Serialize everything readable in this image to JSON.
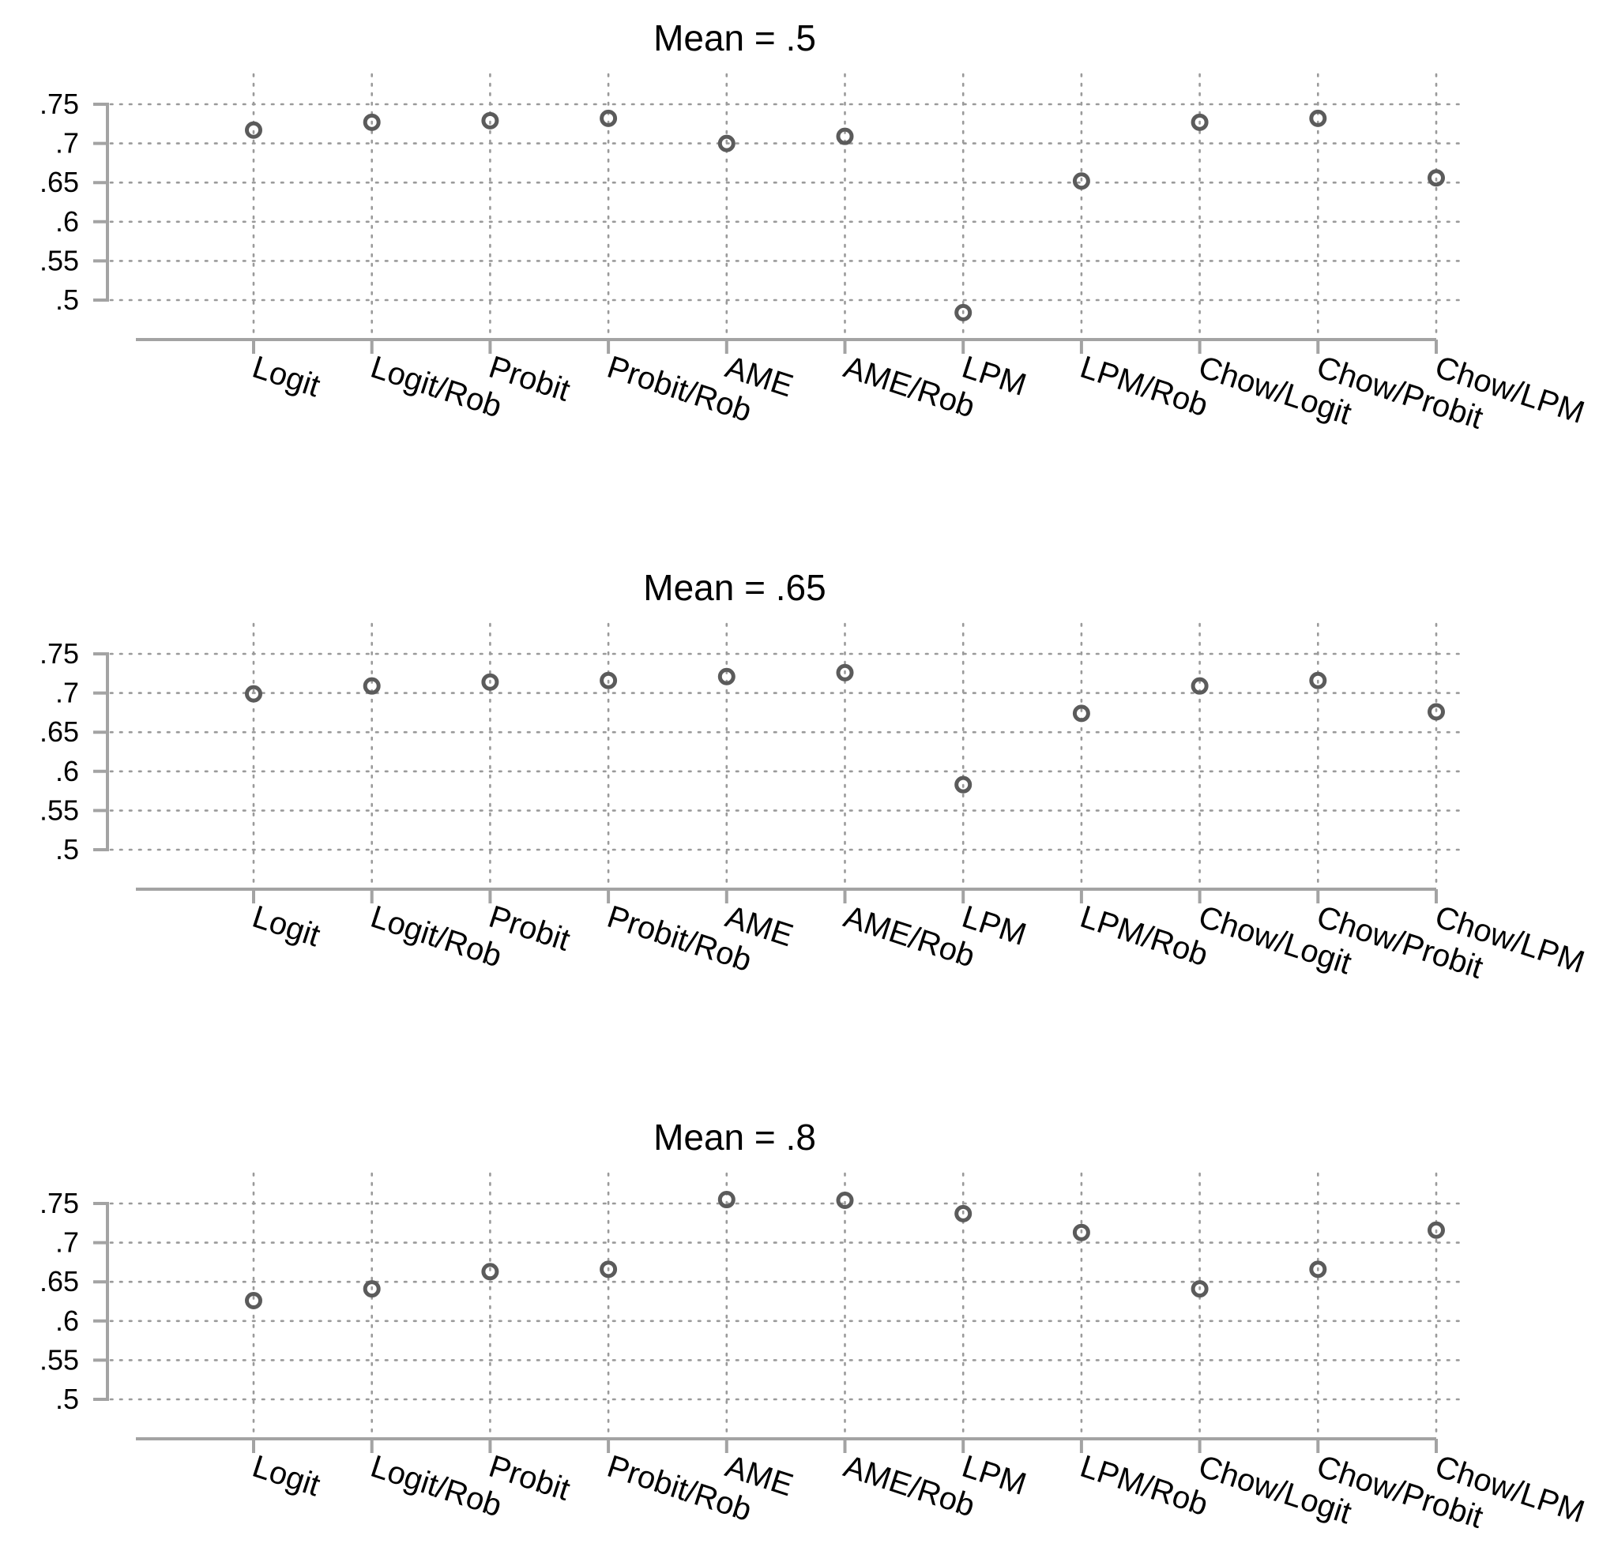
{
  "chart_data": [
    {
      "type": "scatter",
      "title": "Mean = .5",
      "categories": [
        "Logit",
        "Logit/Rob",
        "Probit",
        "Probit/Rob",
        "AME",
        "AME/Rob",
        "LPM",
        "LPM/Rob",
        "Chow/Logit",
        "Chow/Probit",
        "Chow/LPM"
      ],
      "values": [
        0.717,
        0.727,
        0.729,
        0.732,
        0.7,
        0.709,
        0.484,
        0.652,
        0.727,
        0.732,
        0.656
      ],
      "yticks": [
        ".5",
        ".55",
        ".6",
        ".65",
        ".7",
        ".75"
      ],
      "ylim": [
        0.5,
        0.75
      ],
      "grid": true,
      "marker": "hollow-circle",
      "colors": {
        "marker": "#5b5b5b",
        "axis": "#a3a3a3",
        "grid": "#9a9a9a"
      }
    },
    {
      "type": "scatter",
      "title": "Mean = .65",
      "categories": [
        "Logit",
        "Logit/Rob",
        "Probit",
        "Probit/Rob",
        "AME",
        "AME/Rob",
        "LPM",
        "LPM/Rob",
        "Chow/Logit",
        "Chow/Probit",
        "Chow/LPM"
      ],
      "values": [
        0.699,
        0.709,
        0.714,
        0.716,
        0.721,
        0.726,
        0.583,
        0.674,
        0.709,
        0.716,
        0.676
      ],
      "yticks": [
        ".5",
        ".55",
        ".6",
        ".65",
        ".7",
        ".75"
      ],
      "ylim": [
        0.5,
        0.75
      ],
      "grid": true,
      "marker": "hollow-circle",
      "colors": {
        "marker": "#5b5b5b",
        "axis": "#a3a3a3",
        "grid": "#9a9a9a"
      }
    },
    {
      "type": "scatter",
      "title": "Mean = .8",
      "categories": [
        "Logit",
        "Logit/Rob",
        "Probit",
        "Probit/Rob",
        "AME",
        "AME/Rob",
        "LPM",
        "LPM/Rob",
        "Chow/Logit",
        "Chow/Probit",
        "Chow/LPM"
      ],
      "values": [
        0.626,
        0.641,
        0.663,
        0.666,
        0.755,
        0.754,
        0.737,
        0.713,
        0.641,
        0.666,
        0.716
      ],
      "yticks": [
        ".5",
        ".55",
        ".6",
        ".65",
        ".7",
        ".75"
      ],
      "ylim": [
        0.5,
        0.75
      ],
      "grid": true,
      "marker": "hollow-circle",
      "colors": {
        "marker": "#5b5b5b",
        "axis": "#a3a3a3",
        "grid": "#9a9a9a"
      }
    }
  ]
}
